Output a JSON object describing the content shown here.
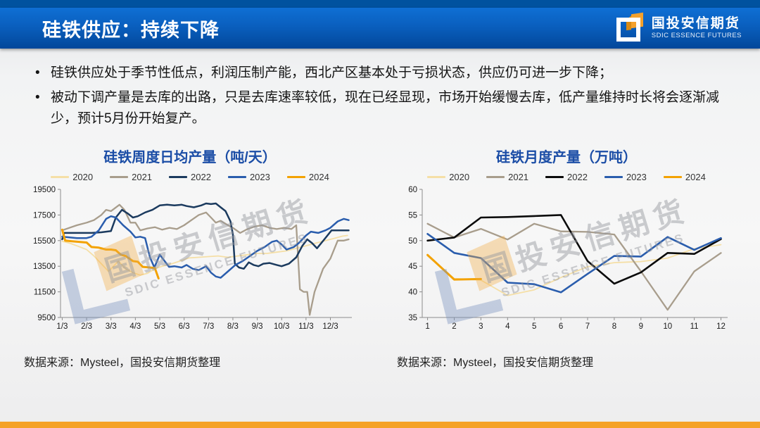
{
  "header": {
    "title": "硅铁供应：持续下降",
    "brand_cn": "国投安信期货",
    "brand_en": "SDIC ESSENCE FUTURES"
  },
  "bullets": [
    "硅铁供应处于季节性低点，利润压制产能，西北产区基本处于亏损状态，供应仍可进一步下降；",
    "被动下调产量是去库的出路，只是去库速率较低，现在已经显现，市场开始缓慢去库，低产量维持时长将会逐渐减少，预计5月份开始复产。"
  ],
  "watermark": {
    "cn": "国投安信期货",
    "en": "SDIC ESSENCE FUTURES"
  },
  "sources": [
    "数据来源：Mysteel，国投安信期货整理",
    "数据来源：Mysteel，国投安信期货整理"
  ],
  "colors": {
    "header_bar": "#0a5fbe",
    "top_strip": "#00529f",
    "chart_title": "#1b4da6",
    "footer_bar": "#f5a228",
    "y2020": "#f5dfa6",
    "y2021": "#a89d8c",
    "y2022_navy": "#1b3a5e",
    "y2022_black": "#0b0b0b",
    "y2023": "#2a5dad",
    "y2024": "#f3a202"
  },
  "chart_data": [
    {
      "type": "line",
      "title": "硅铁周度日均产量（吨/天）",
      "xlabel": "",
      "ylabel": "",
      "grid": false,
      "legend_position": "top",
      "xlim": [
        0.93,
        12.88
      ],
      "ylim": [
        9500,
        19500
      ],
      "yticks": [
        9500,
        11500,
        13500,
        15500,
        17500,
        19500
      ],
      "xticks": {
        "values": [
          1,
          2,
          3,
          4,
          5,
          6,
          7,
          8,
          9,
          10,
          11,
          12
        ],
        "labels": [
          "1/3",
          "2/3",
          "3/3",
          "4/3",
          "5/3",
          "6/3",
          "7/3",
          "8/3",
          "9/3",
          "10/3",
          "11/3",
          "12/3"
        ]
      },
      "series": [
        {
          "name": "2020",
          "color": "#f5dfa6",
          "width": 1.8,
          "x": [
            1.0,
            1.3,
            1.6,
            2.0,
            2.3,
            2.6,
            2.9,
            3.1,
            3.3,
            3.6,
            3.9,
            4.2,
            4.5,
            4.8,
            5.1,
            5.5,
            5.9,
            6.2,
            6.6,
            7.0,
            7.4,
            7.8,
            8.2,
            8.6,
            9.0,
            9.4,
            9.8,
            10.2,
            10.6,
            11.0,
            11.4,
            11.8,
            12.2,
            12.5,
            12.7
          ],
          "values": [
            15450,
            15300,
            15100,
            14800,
            14300,
            13700,
            13100,
            13500,
            13900,
            13300,
            13000,
            12800,
            12950,
            13300,
            13500,
            13700,
            13950,
            14150,
            14200,
            14250,
            14300,
            14200,
            14300,
            14400,
            14500,
            14500,
            14600,
            14700,
            14900,
            15100,
            15300,
            15500,
            15700,
            15850,
            15900
          ]
        },
        {
          "name": "2021",
          "color": "#a89d8c",
          "width": 2.3,
          "x": [
            1.0,
            1.3,
            1.6,
            2.0,
            2.3,
            2.6,
            2.8,
            3.0,
            3.35,
            3.55,
            3.8,
            4.0,
            4.2,
            4.5,
            4.8,
            5.1,
            5.4,
            5.7,
            6.0,
            6.3,
            6.6,
            6.9,
            7.1,
            7.3,
            7.5,
            7.8,
            8.0,
            8.3,
            8.6,
            8.9,
            9.2,
            9.5,
            9.8,
            10.1,
            10.4,
            10.6,
            10.75,
            10.9,
            11.05,
            11.15,
            11.35,
            11.7,
            12.0,
            12.3,
            12.55,
            12.75
          ],
          "values": [
            16300,
            16500,
            16700,
            16900,
            17100,
            17500,
            17900,
            17800,
            18300,
            17900,
            16900,
            16900,
            16300,
            16450,
            16550,
            16350,
            16500,
            16400,
            16700,
            17100,
            17500,
            17700,
            17300,
            16900,
            17050,
            16700,
            16500,
            16100,
            16400,
            16600,
            16700,
            16500,
            16400,
            16500,
            16400,
            16700,
            11700,
            11500,
            11500,
            9700,
            11500,
            13300,
            14100,
            15500,
            15500,
            15600
          ]
        },
        {
          "name": "2022",
          "color": "#1b3a5e",
          "width": 2.5,
          "x": [
            1.0,
            1.08,
            1.4,
            1.8,
            2.2,
            2.6,
            3.0,
            3.2,
            3.45,
            3.7,
            3.9,
            4.1,
            4.4,
            4.7,
            5.0,
            5.3,
            5.6,
            5.9,
            6.1,
            6.4,
            6.7,
            6.9,
            7.1,
            7.3,
            7.5,
            7.7,
            7.9,
            8.0,
            8.08,
            8.25,
            8.45,
            8.65,
            8.85,
            9.05,
            9.25,
            9.5,
            9.8,
            10.0,
            10.3,
            10.6,
            10.85,
            11.05,
            11.25,
            11.45,
            11.75,
            12.05,
            12.35,
            12.75
          ],
          "values": [
            15600,
            16100,
            16100,
            16100,
            16100,
            16150,
            16250,
            17300,
            17900,
            17600,
            17300,
            17400,
            17700,
            17900,
            18250,
            18300,
            18250,
            18300,
            18200,
            18100,
            18250,
            18400,
            18350,
            18400,
            18100,
            17800,
            17000,
            16000,
            13700,
            13400,
            13300,
            13800,
            13600,
            13500,
            13700,
            13750,
            13600,
            13500,
            13700,
            14200,
            15100,
            15600,
            15300,
            14900,
            15600,
            16300,
            16300,
            16300
          ]
        },
        {
          "name": "2023",
          "color": "#2a5dad",
          "width": 2.5,
          "x": [
            1.0,
            1.3,
            1.6,
            2.0,
            2.2,
            2.5,
            2.8,
            3.0,
            3.2,
            3.5,
            3.8,
            4.0,
            4.2,
            4.4,
            4.6,
            4.78,
            5.0,
            5.2,
            5.38,
            5.6,
            5.9,
            6.1,
            6.35,
            6.6,
            6.9,
            7.1,
            7.3,
            7.5,
            7.8,
            8.1,
            8.4,
            8.7,
            9.0,
            9.3,
            9.6,
            9.8,
            10.0,
            10.2,
            10.5,
            10.7,
            11.0,
            11.2,
            11.5,
            11.8,
            12.0,
            12.3,
            12.55,
            12.75
          ],
          "values": [
            15800,
            15750,
            15700,
            15700,
            15800,
            16300,
            17200,
            17400,
            17300,
            16700,
            16200,
            15750,
            15800,
            15700,
            14200,
            13400,
            14400,
            13900,
            13450,
            13500,
            13400,
            13600,
            13300,
            13200,
            13500,
            13000,
            12700,
            12600,
            13100,
            13600,
            13900,
            14300,
            14700,
            15000,
            15400,
            15500,
            15200,
            14800,
            15000,
            15300,
            15900,
            16200,
            16100,
            16300,
            16500,
            17000,
            17200,
            17100
          ]
        },
        {
          "name": "2024",
          "color": "#f3a202",
          "width": 3,
          "x": [
            1.0,
            1.12,
            1.4,
            1.7,
            2.0,
            2.2,
            2.5,
            2.8,
            3.0,
            3.2,
            3.4,
            3.6,
            3.9,
            4.1,
            4.3,
            4.6,
            4.8,
            4.95
          ],
          "values": [
            16350,
            15500,
            15450,
            15400,
            15350,
            15000,
            14950,
            14800,
            14800,
            14750,
            14400,
            14300,
            13900,
            13850,
            13450,
            13400,
            13350,
            12550
          ]
        }
      ]
    },
    {
      "type": "line",
      "title": "硅铁月度产量（万吨）",
      "xlabel": "",
      "ylabel": "",
      "grid": false,
      "legend_position": "top",
      "xlim": [
        0.8,
        12.25
      ],
      "ylim": [
        35,
        60
      ],
      "yticks": [
        35,
        40,
        45,
        50,
        55,
        60
      ],
      "xticks": {
        "values": [
          1,
          2,
          3,
          4,
          5,
          6,
          7,
          8,
          9,
          10,
          11,
          12
        ],
        "labels": [
          "1",
          "2",
          "3",
          "4",
          "5",
          "6",
          "7",
          "8",
          "9",
          "10",
          "11",
          "12"
        ]
      },
      "series": [
        {
          "name": "2020",
          "color": "#f5dfa6",
          "width": 1.8,
          "x": [
            1,
            2,
            3,
            4,
            5,
            6,
            7,
            8,
            9,
            10,
            11,
            12
          ],
          "values": [
            47.0,
            42.6,
            42.3,
            39.3,
            40.4,
            42.8,
            44.9,
            45.7,
            45.9,
            46.6,
            48.4,
            49.2
          ]
        },
        {
          "name": "2021",
          "color": "#a89d8c",
          "width": 2.3,
          "x": [
            1,
            2,
            3,
            4,
            5,
            6,
            7,
            8,
            9,
            10,
            11,
            12
          ],
          "values": [
            53.3,
            50.6,
            52.3,
            50.2,
            53.3,
            51.8,
            51.7,
            51.2,
            44.0,
            36.5,
            44.0,
            47.6
          ]
        },
        {
          "name": "2022",
          "color": "#0b0b0b",
          "width": 2.6,
          "x": [
            1,
            2,
            3,
            4,
            5,
            6,
            7,
            8,
            9,
            10,
            11,
            12
          ],
          "values": [
            50.0,
            50.6,
            54.5,
            54.6,
            54.8,
            55.0,
            46.0,
            41.6,
            43.8,
            47.6,
            47.4,
            50.3
          ]
        },
        {
          "name": "2023",
          "color": "#2a5dad",
          "width": 2.6,
          "x": [
            1,
            2,
            3,
            4,
            5,
            6,
            7,
            8,
            9,
            10,
            11,
            12
          ],
          "values": [
            51.3,
            47.6,
            46.6,
            41.8,
            41.5,
            39.9,
            43.5,
            47.0,
            46.9,
            50.7,
            48.2,
            50.5
          ]
        },
        {
          "name": "2024",
          "color": "#f3a202",
          "width": 3,
          "x": [
            1,
            2,
            3
          ],
          "values": [
            47.2,
            42.4,
            42.5
          ]
        }
      ]
    }
  ]
}
